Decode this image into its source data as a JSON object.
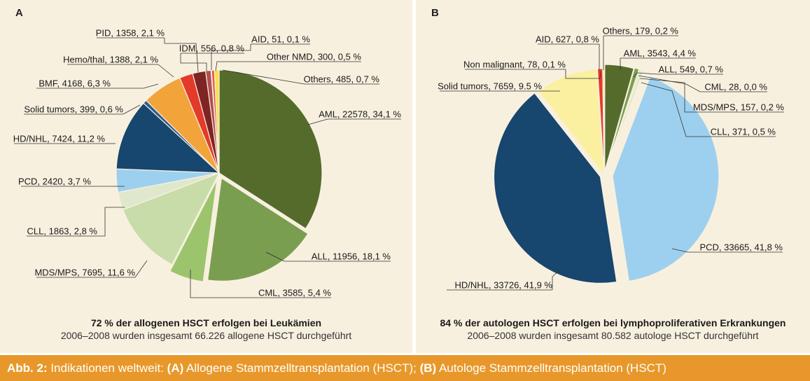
{
  "figure_caption": {
    "prefix": "Abb. 2:",
    "text": " Indikationen weltweit: ",
    "a_letter": "(A)",
    "a_text": " Allogene Stammzelltransplantation (HSCT); ",
    "b_letter": "(B)",
    "b_text": " Autologe Stammzelltransplantation (HSCT)"
  },
  "chart_data": [
    {
      "type": "pie",
      "panel_label": "A",
      "caption_bold": "72 % der allogenen HSCT erfolgen bei Leukämien",
      "caption": "2006–2008 wurden insgesamt 66.226 allogene HSCT durchgeführt",
      "slices": [
        {
          "label": "AML, 22578, 34,1 %",
          "value": 22578,
          "color": "#546b2c"
        },
        {
          "label": "ALL, 11956, 18,1 %",
          "value": 11956,
          "color": "#7a9e50"
        },
        {
          "label": "CML, 3585, 5,4 %",
          "value": 3585,
          "color": "#9cc46c"
        },
        {
          "label": "MDS/MPS, 7695, 11,6 %",
          "value": 7695,
          "color": "#c8dcaa"
        },
        {
          "label": "CLL, 1863, 2,8 %",
          "value": 1863,
          "color": "#dfe8cc"
        },
        {
          "label": "PCD, 2420, 3,7 %",
          "value": 2420,
          "color": "#9dd0ef"
        },
        {
          "label": "HD/NHL, 7424, 11,2 %",
          "value": 7424,
          "color": "#17466e"
        },
        {
          "label": "Solid tumors, 399, 0,6 %",
          "value": 399,
          "color": "#2c5f8e"
        },
        {
          "label": "BMF, 4168, 6,3 %",
          "value": 4168,
          "color": "#f2a33a"
        },
        {
          "label": "Hemo/thal, 1388, 2,1 %",
          "value": 1388,
          "color": "#e43a2a"
        },
        {
          "label": "PID, 1358, 2,1 %",
          "value": 1358,
          "color": "#7f2424"
        },
        {
          "label": "IDM, 556, 0,8 %",
          "value": 556,
          "color": "#b05050"
        },
        {
          "label": "AID, 51, 0,1 %",
          "value": 51,
          "color": "#f7e97a"
        },
        {
          "label": "Other NMD, 300, 0,5 %",
          "value": 300,
          "color": "#e8564a"
        },
        {
          "label": "Others, 485, 0,7 %",
          "value": 485,
          "color": "#f7e14a"
        }
      ]
    },
    {
      "type": "pie",
      "panel_label": "B",
      "caption_bold": "84 % der autologen HSCT erfolgen bei lymphoproliferativen Erkrankungen",
      "caption": "2006–2008 wurden insgesamt 80.582 autologe HSCT durchgeführt",
      "slices": [
        {
          "label": "AML, 3543, 4,4 %",
          "value": 3543,
          "color": "#546b2c"
        },
        {
          "label": "ALL, 549, 0,7 %",
          "value": 549,
          "color": "#7a9e50"
        },
        {
          "label": "CML, 28, 0,0 %",
          "value": 28,
          "color": "#9cc46c"
        },
        {
          "label": "MDS/MPS, 157, 0,2 %",
          "value": 157,
          "color": "#c8dcaa"
        },
        {
          "label": "CLL, 371, 0,5 %",
          "value": 371,
          "color": "#dfe8cc"
        },
        {
          "label": "PCD, 33665, 41,8 %",
          "value": 33665,
          "color": "#9dd0ef"
        },
        {
          "label": "HD/NHL, 33726, 41,9 %",
          "value": 33726,
          "color": "#17466e"
        },
        {
          "label": "Solid tumors, 7659, 9.5 %",
          "value": 7659,
          "color": "#faf0a0"
        },
        {
          "label": "Non malignant, 78, 0,1 %",
          "value": 78,
          "color": "#f2a33a"
        },
        {
          "label": "AID, 627, 0,8 %",
          "value": 627,
          "color": "#e43a2a"
        },
        {
          "label": "Others, 179, 0,2 %",
          "value": 179,
          "color": "#f7e14a"
        }
      ]
    }
  ]
}
